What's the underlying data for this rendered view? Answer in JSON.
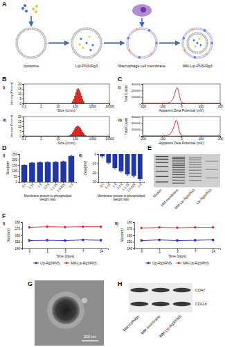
{
  "panel_labels": [
    "A",
    "B",
    "C",
    "D",
    "E",
    "F",
    "G",
    "H"
  ],
  "schematic": {
    "steps": [
      "liposome",
      "Lip-PNS/Rg3",
      "Macrophage cell membrane",
      "MM-Lip-PNS/Rg3"
    ]
  },
  "chart_data": [
    {
      "type": "histogram",
      "title": "I)",
      "xlabel": "Size (d.nm)",
      "ylabel": "Intensity (Percent)",
      "log": "x",
      "bins": [
        58.8,
        68.1,
        78.8,
        91.3,
        105.7,
        122.4,
        141.8,
        164.2,
        190.1,
        220.2,
        255.0,
        295.3,
        342.0
      ],
      "counts": [
        0.4,
        1.6,
        4.2,
        7.8,
        11.5,
        14.3,
        15.2,
        13.8,
        10.9,
        7.6,
        4.3,
        1.9
      ],
      "color": "#e3211c",
      "xlim": [
        0.1,
        10000
      ],
      "xticks": [
        0.1,
        1,
        10,
        100,
        1000,
        10000
      ],
      "ylim": [
        0,
        20
      ],
      "yticks": [
        0,
        5,
        10,
        15,
        20
      ]
    },
    {
      "type": "histogram",
      "title": "II)",
      "xlabel": "Size (d.nm)",
      "ylabel": "Intensity (Percent)",
      "log": "x",
      "bins": [
        43.8,
        50.7,
        58.8,
        68.1,
        78.8,
        91.3,
        105.7,
        122.4,
        141.8,
        164.2,
        190.1,
        220.2,
        255.0,
        295.3,
        342.0,
        396.1,
        458.7
      ],
      "counts": [
        0.3,
        0.9,
        2.0,
        3.6,
        5.5,
        7.4,
        9.0,
        10.0,
        10.2,
        9.5,
        8.0,
        6.1,
        4.2,
        2.5,
        1.2,
        0.4
      ],
      "color": "#e3211c",
      "xlim": [
        0.1,
        10000
      ],
      "xticks": [
        0.1,
        1,
        10,
        100,
        1000,
        10000
      ],
      "ylim": [
        0,
        20
      ],
      "yticks": [
        0,
        5,
        10,
        15,
        20
      ]
    },
    {
      "type": "line",
      "title": "I)",
      "xlabel": "Apparent Zeta Potential (mV)",
      "ylabel": "Total Counts",
      "x": [
        -200,
        -100,
        -80,
        -60,
        -45,
        -35,
        -28,
        -22,
        -16,
        -10,
        -4,
        5,
        20,
        100,
        200
      ],
      "values": [
        0,
        0,
        2000,
        15000,
        60000,
        140000,
        215000,
        245000,
        205000,
        120000,
        45000,
        8000,
        0,
        0,
        0
      ],
      "color": "#e3211c",
      "xlim": [
        -200,
        200
      ],
      "xticks": [
        -200,
        -100,
        0,
        100,
        200
      ],
      "ylim": [
        0,
        300000
      ],
      "yticks": [
        0,
        100000,
        200000,
        300000
      ]
    },
    {
      "type": "line",
      "title": "II)",
      "xlabel": "Apparent Zeta Potential (mV)",
      "ylabel": "Total Counts",
      "x": [
        -200,
        -100,
        -80,
        -60,
        -45,
        -35,
        -28,
        -22,
        -16,
        -10,
        -4,
        5,
        20,
        100,
        200
      ],
      "values": [
        0,
        0,
        3000,
        25000,
        90000,
        180000,
        240000,
        230000,
        150000,
        70000,
        20000,
        3000,
        0,
        0,
        0
      ],
      "color": "#e3211c",
      "xlim": [
        -200,
        200
      ],
      "xticks": [
        -200,
        -100,
        0,
        100,
        200
      ],
      "ylim": [
        0,
        300000
      ],
      "yticks": [
        0,
        100000,
        200000,
        300000
      ]
    },
    {
      "type": "bar",
      "title": "I)",
      "xlabel": "Membrane protein-to-phospholipid weight ratio",
      "ylabel": "Size(nm)",
      "categories": [
        "0:1",
        "1:10",
        "1:5",
        "1:2.5",
        "1:1.25",
        "1:0.625",
        "1:0"
      ],
      "values": [
        150,
        172,
        176,
        178,
        179,
        183,
        233
      ],
      "errors": [
        4,
        3,
        3,
        3,
        3,
        4,
        6
      ],
      "color": "#1f35a8",
      "ylim": [
        0,
        250
      ],
      "yticks": [
        0,
        50,
        100,
        150,
        200,
        250
      ]
    },
    {
      "type": "bar",
      "title": "II)",
      "xlabel": "Membrane protein-to-phospholipid weight ratio",
      "ylabel": "Zeta(mV)",
      "categories": [
        "0:1",
        "1:10",
        "1:5",
        "1:2.5",
        "1:1.25",
        "1:0.625",
        "1:0"
      ],
      "values": [
        -2.5,
        -9.5,
        -15,
        -18.5,
        -22,
        -23.5,
        -27
      ],
      "errors": [
        0.8,
        1,
        1,
        1,
        1.2,
        1.2,
        1.5
      ],
      "color": "#1f35a8",
      "ylim": [
        -30,
        0
      ],
      "yticks": [
        0,
        -10,
        -20,
        -30
      ]
    },
    {
      "type": "line",
      "title": "I)",
      "xlabel": "Time (days)",
      "ylabel": "Size(nm)",
      "categories": [
        "0",
        "1",
        "3",
        "7",
        "14"
      ],
      "series": [
        {
          "name": "Lip-Rg3/PNS",
          "color": "#2233b0",
          "marker": "square",
          "values": [
            152,
            152.5,
            152,
            153,
            152.5
          ],
          "errors": [
            1,
            1,
            1,
            1,
            1
          ]
        },
        {
          "name": "MM-Lip-Rg3/PNS",
          "color": "#d62728",
          "marker": "circle",
          "values": [
            172,
            173,
            172.5,
            173,
            173
          ],
          "errors": [
            1.2,
            1.2,
            1.2,
            1.2,
            1.2
          ]
        }
      ],
      "ylim": [
        140,
        180
      ],
      "yticks": [
        140,
        150,
        160,
        170,
        180
      ],
      "legend": "bottom"
    },
    {
      "type": "line",
      "title": "II)",
      "xlabel": "Time (days)",
      "ylabel": "Size(nm)",
      "categories": [
        "0",
        "1",
        "3",
        "7",
        "14"
      ],
      "series": [
        {
          "name": "Lip-Rg3/PNS",
          "color": "#2233b0",
          "marker": "square",
          "values": [
            152,
            153,
            152,
            152.5,
            153
          ],
          "errors": [
            1,
            1,
            1,
            1,
            1
          ]
        },
        {
          "name": "MM-Lip-Rg3/PNS",
          "color": "#d62728",
          "marker": "circle",
          "values": [
            171,
            172,
            171.5,
            172,
            172
          ],
          "errors": [
            1.2,
            1.2,
            1.2,
            1.2,
            1.2
          ]
        }
      ],
      "ylim": [
        140,
        180
      ],
      "yticks": [
        140,
        150,
        160,
        170,
        180
      ],
      "legend": "bottom"
    }
  ],
  "gel": {
    "lanes": [
      "Marker",
      "MM membrane",
      "MM-Lip-Rg3/PNS",
      "Lip-Rg3/PNS"
    ]
  },
  "tem": {
    "scale_bar": "200 nm"
  },
  "blot": {
    "proteins": [
      "CD47",
      "CD11b"
    ],
    "lanes": [
      "Macrophage",
      "MM membrane",
      "MM-Lip-Rg3/PNS"
    ]
  }
}
